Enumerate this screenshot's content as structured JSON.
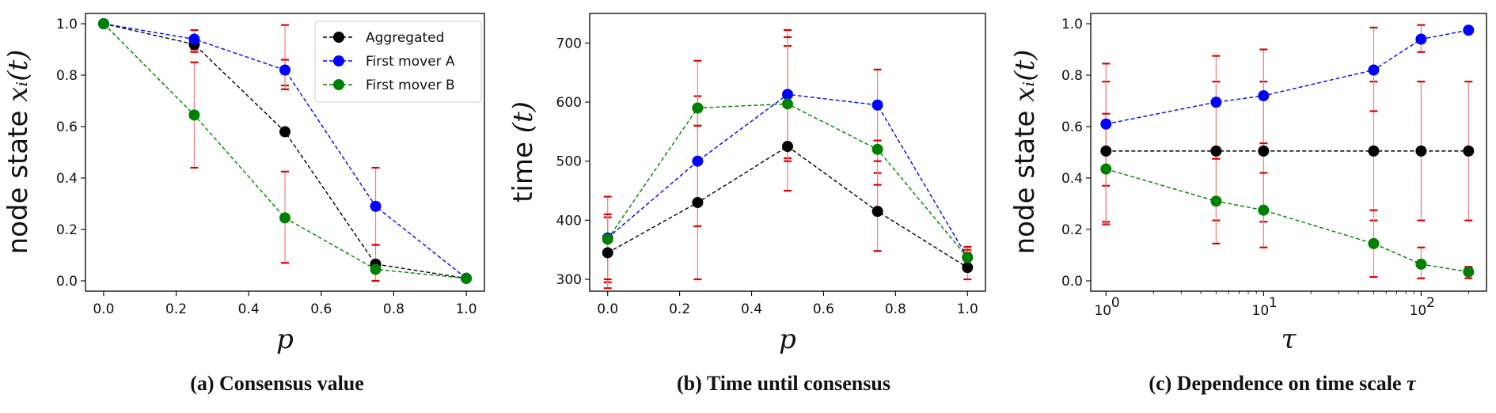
{
  "chart_data": [
    {
      "type": "line",
      "caption": "(a) Consensus value",
      "xlabel": "p",
      "ylabel_text": "node state ",
      "ylabel_math": "xᵢ(t)",
      "xscale": "linear",
      "xlim": [
        -0.05,
        1.05
      ],
      "ylim": [
        -0.04,
        1.04
      ],
      "xticks": [
        0.0,
        0.2,
        0.4,
        0.6,
        0.8,
        1.0
      ],
      "xtick_labels": [
        "0.0",
        "0.2",
        "0.4",
        "0.6",
        "0.8",
        "1.0"
      ],
      "yticks": [
        0.0,
        0.2,
        0.4,
        0.6,
        0.8,
        1.0
      ],
      "ytick_labels": [
        "0.0",
        "0.2",
        "0.4",
        "0.6",
        "0.8",
        "1.0"
      ],
      "legend": "top-right",
      "x": [
        0.0,
        0.25,
        0.5,
        0.75,
        1.0
      ],
      "series": [
        {
          "name": "Aggregated",
          "color": "#000000",
          "values": [
            1.0,
            0.92,
            0.58,
            0.065,
            0.01
          ],
          "err_low": [
            1.0,
            0.89,
            0.76,
            0.0,
            0.01
          ],
          "err_high": [
            1.0,
            0.95,
            0.995,
            0.14,
            0.01
          ]
        },
        {
          "name": "First mover A",
          "color": "#0000ff",
          "values": [
            1.0,
            0.94,
            0.82,
            0.29,
            0.01
          ],
          "err_low": [
            1.0,
            0.9,
            0.745,
            0.14,
            0.01
          ],
          "err_high": [
            1.0,
            0.975,
            0.86,
            0.44,
            0.01
          ]
        },
        {
          "name": "First mover B",
          "color": "#008000",
          "values": [
            1.0,
            0.645,
            0.245,
            0.045,
            0.01
          ],
          "err_low": [
            1.0,
            0.44,
            0.07,
            0.04,
            0.01
          ],
          "err_high": [
            1.0,
            0.85,
            0.425,
            0.05,
            0.01
          ]
        }
      ]
    },
    {
      "type": "line",
      "caption": "(b) Time until consensus",
      "xlabel": "p",
      "ylabel_text": "time ",
      "ylabel_math": "(t)",
      "xscale": "linear",
      "xlim": [
        -0.05,
        1.05
      ],
      "ylim": [
        280,
        750
      ],
      "xticks": [
        0.0,
        0.2,
        0.4,
        0.6,
        0.8,
        1.0
      ],
      "xtick_labels": [
        "0.0",
        "0.2",
        "0.4",
        "0.6",
        "0.8",
        "1.0"
      ],
      "yticks": [
        300,
        400,
        500,
        600,
        700
      ],
      "ytick_labels": [
        "300",
        "400",
        "500",
        "600",
        "700"
      ],
      "legend": "none",
      "x": [
        0.0,
        0.25,
        0.5,
        0.75,
        1.0
      ],
      "series": [
        {
          "name": "Aggregated",
          "color": "#000000",
          "values": [
            345,
            430,
            525,
            415,
            320
          ],
          "err_low": [
            295,
            300,
            450,
            348,
            300
          ],
          "err_high": [
            405,
            560,
            695,
            480,
            345
          ]
        },
        {
          "name": "First mover A",
          "color": "#0000ff",
          "values": [
            370,
            500,
            613,
            595,
            337
          ],
          "err_low": [
            285,
            390,
            505,
            460,
            320
          ],
          "err_high": [
            440,
            610,
            722,
            655,
            355
          ]
        },
        {
          "name": "First mover B",
          "color": "#008000",
          "values": [
            368,
            590,
            597,
            520,
            337
          ],
          "err_low": [
            300,
            560,
            500,
            500,
            325
          ],
          "err_high": [
            410,
            670,
            710,
            535,
            350
          ]
        }
      ]
    },
    {
      "type": "line",
      "caption": "(c) Dependence on time scale ",
      "caption_math": "τ",
      "xlabel": "τ",
      "ylabel_text": "node state ",
      "ylabel_math": "xᵢ(t)",
      "xscale": "log",
      "xlim": [
        0.8,
        260
      ],
      "ylim": [
        -0.04,
        1.04
      ],
      "xticks": [
        1,
        10,
        100
      ],
      "xtick_labels": [
        "10^0",
        "10^1",
        "10^2"
      ],
      "yticks": [
        0.0,
        0.2,
        0.4,
        0.6,
        0.8,
        1.0
      ],
      "ytick_labels": [
        "0.0",
        "0.2",
        "0.4",
        "0.6",
        "0.8",
        "1.0"
      ],
      "legend": "none",
      "x": [
        1,
        5,
        10,
        50,
        100,
        200
      ],
      "series": [
        {
          "name": "Aggregated",
          "color": "#000000",
          "values": [
            0.505,
            0.505,
            0.505,
            0.505,
            0.505,
            0.505
          ],
          "err_low": [
            0.23,
            0.235,
            0.23,
            0.235,
            0.235,
            0.235
          ],
          "err_high": [
            0.775,
            0.775,
            0.775,
            0.775,
            0.775,
            0.775
          ]
        },
        {
          "name": "First mover A",
          "color": "#0000ff",
          "values": [
            0.61,
            0.695,
            0.72,
            0.82,
            0.94,
            0.975
          ],
          "err_low": [
            0.37,
            0.475,
            0.535,
            0.66,
            0.89,
            0.975
          ],
          "err_high": [
            0.845,
            0.875,
            0.9,
            0.985,
            0.995,
            0.975
          ]
        },
        {
          "name": "First mover B",
          "color": "#008000",
          "values": [
            0.435,
            0.31,
            0.275,
            0.145,
            0.065,
            0.035
          ],
          "err_low": [
            0.22,
            0.145,
            0.13,
            0.015,
            0.01,
            0.01
          ],
          "err_high": [
            0.65,
            0.475,
            0.42,
            0.275,
            0.13,
            0.055
          ]
        }
      ]
    }
  ]
}
